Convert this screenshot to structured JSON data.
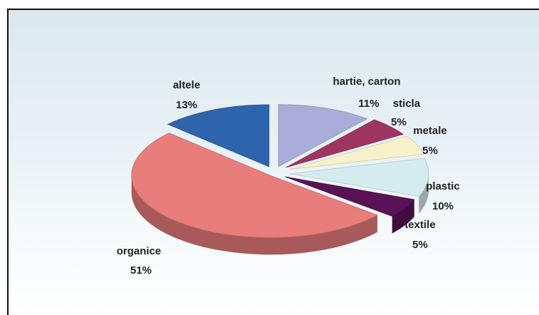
{
  "chart_data": {
    "type": "pie",
    "title": "",
    "slices": [
      {
        "label": "hartie, carton",
        "value": 11,
        "display": "11%",
        "color": "#a9acd8"
      },
      {
        "label": "sticla",
        "value": 5,
        "display": "5%",
        "color": "#9e3560"
      },
      {
        "label": "metale",
        "value": 5,
        "display": "5%",
        "color": "#f6f1c8"
      },
      {
        "label": "plastic",
        "value": 10,
        "display": "10%",
        "color": "#d4ecef"
      },
      {
        "label": "textile",
        "value": 5,
        "display": "5%",
        "color": "#5a1256"
      },
      {
        "label": "organice",
        "value": 51,
        "display": "51%",
        "color": "#e87d7b"
      },
      {
        "label": "altele",
        "value": 13,
        "display": "13%",
        "color": "#2e64ab"
      }
    ]
  }
}
